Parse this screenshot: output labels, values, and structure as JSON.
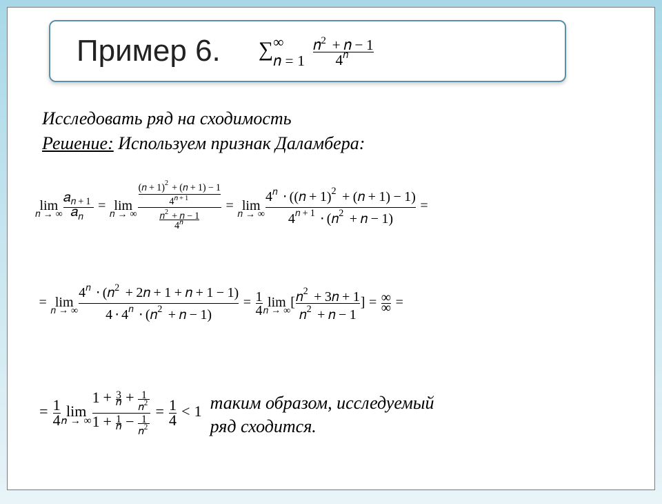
{
  "document": {
    "type": "math-slide",
    "background_gradient": [
      "#a8d8e8",
      "#e8f4f8"
    ],
    "frame_border_color": "#7a7a7a",
    "header": {
      "title": "Пример 6.",
      "title_font": "Arial",
      "title_fontsize": 44,
      "border_color": "#5a8fa8",
      "border_radius": 10,
      "series_sum_lower": "n=1",
      "series_sum_upper": "∞",
      "series_numerator": "n² + n − 1",
      "series_denominator": "4ⁿ"
    },
    "body": {
      "line1": "Исследовать  ряд  на  сходимость",
      "solution_label": "Решение:",
      "line2_rest": "  Используем   признак   Даламбера:",
      "font_style": "italic",
      "fontsize": 26
    },
    "math": {
      "row1": {
        "lhs_num": "a",
        "lhs_num_sub": "n+1",
        "lhs_den": "a",
        "lhs_den_sub": "n",
        "substituted_top_num": "(n+1)² + (n+1) − 1",
        "substituted_top_den": "4ⁿ⁺¹",
        "substituted_bot_num": "n² + n − 1",
        "substituted_bot_den": "4ⁿ",
        "flipped_num": "4ⁿ · ((n+1)² + (n+1) − 1)",
        "flipped_den": "4ⁿ⁺¹ · (n² + n − 1)"
      },
      "row2": {
        "expand_num": "4ⁿ · (n² + 2n + 1 + n + 1 − 1)",
        "expand_den": "4 · 4ⁿ · (n² + n − 1)",
        "factor_out_coef_num": "1",
        "factor_out_coef_den": "4",
        "ratio_num": "n² + 3n + 1",
        "ratio_den": "n² + n − 1",
        "indet_num": "∞",
        "indet_den": "∞"
      },
      "row3": {
        "coef_num": "1",
        "coef_den": "4",
        "divided_num": "1 + 3/n + 1/n²",
        "divided_den": "1 + 1/n − 1/n²",
        "result_num": "1",
        "result_den": "4",
        "compare": "< 1"
      },
      "lim_symbol": "lim",
      "lim_sub": "n→∞"
    },
    "conclusion": {
      "line1": "таким  образом, исследуемый",
      "line2": "ряд   сходится."
    }
  }
}
